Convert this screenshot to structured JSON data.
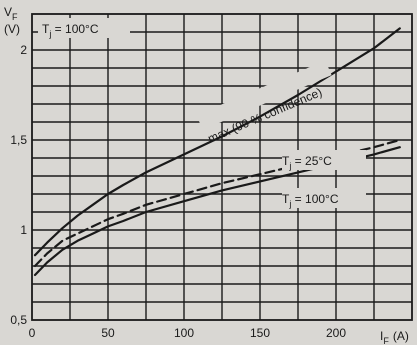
{
  "chart_data": {
    "type": "line",
    "y_label_symbol": "V",
    "y_label_sub": "F",
    "y_unit": "(V)",
    "x_label_symbol": "I",
    "x_label_sub": "F",
    "x_unit": "(A)",
    "title_symbol": "T",
    "title_sub": "j",
    "title_rest": " = 100°C",
    "xlim": [
      0,
      250
    ],
    "ylim": [
      0.5,
      2.2
    ],
    "x_ticks": [
      0,
      50,
      100,
      150,
      200
    ],
    "x_tick_labels": [
      "0",
      "50",
      "100",
      "150",
      "200"
    ],
    "y_ticks": [
      0.5,
      1,
      1.5,
      2
    ],
    "y_tick_labels": [
      "0,5",
      "1",
      "1,5",
      "2"
    ],
    "grid": true,
    "series": [
      {
        "name": "max (90 % confidence)",
        "dash": "solid",
        "points": [
          [
            2,
            0.86
          ],
          [
            10,
            0.93
          ],
          [
            20,
            1.01
          ],
          [
            30,
            1.08
          ],
          [
            40,
            1.14
          ],
          [
            50,
            1.2
          ],
          [
            60,
            1.25
          ],
          [
            75,
            1.32
          ],
          [
            100,
            1.42
          ],
          [
            125,
            1.52
          ],
          [
            150,
            1.63
          ],
          [
            175,
            1.75
          ],
          [
            200,
            1.88
          ],
          [
            225,
            2.01
          ],
          [
            242,
            2.12
          ]
        ]
      },
      {
        "name": "T_j = 25°C",
        "label_symbol": "T",
        "label_sub": "j",
        "label_rest": " = 25°C",
        "dash": "dashed",
        "points": [
          [
            2,
            0.8
          ],
          [
            10,
            0.87
          ],
          [
            20,
            0.94
          ],
          [
            30,
            0.98
          ],
          [
            40,
            1.02
          ],
          [
            50,
            1.06
          ],
          [
            60,
            1.09
          ],
          [
            75,
            1.14
          ],
          [
            100,
            1.2
          ],
          [
            125,
            1.26
          ],
          [
            150,
            1.31
          ],
          [
            175,
            1.36
          ],
          [
            200,
            1.41
          ],
          [
            225,
            1.46
          ],
          [
            242,
            1.5
          ]
        ]
      },
      {
        "name": "T_j = 100°C",
        "label_symbol": "T",
        "label_sub": "j",
        "label_rest": " = 100°C",
        "dash": "solid",
        "points": [
          [
            2,
            0.75
          ],
          [
            10,
            0.82
          ],
          [
            20,
            0.89
          ],
          [
            30,
            0.94
          ],
          [
            40,
            0.98
          ],
          [
            50,
            1.02
          ],
          [
            60,
            1.05
          ],
          [
            75,
            1.1
          ],
          [
            100,
            1.16
          ],
          [
            125,
            1.22
          ],
          [
            150,
            1.27
          ],
          [
            175,
            1.32
          ],
          [
            200,
            1.37
          ],
          [
            225,
            1.42
          ],
          [
            242,
            1.46
          ]
        ]
      }
    ]
  }
}
